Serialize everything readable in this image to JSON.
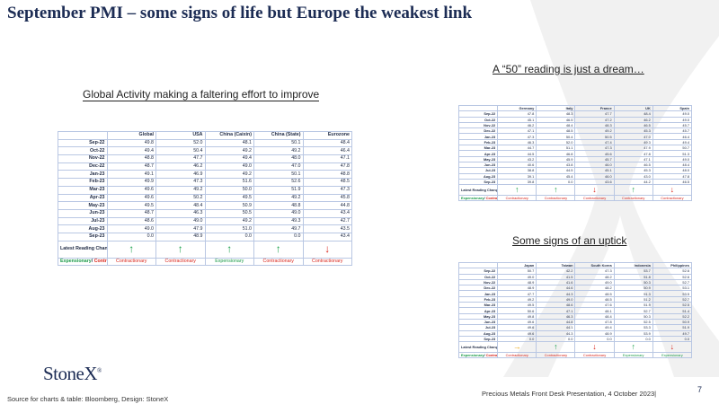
{
  "title": "September PMI – some signs of life but Europe the weakest link",
  "subtitles": {
    "global": "Global Activity making a faltering effort to improve",
    "europe": "A “50” reading is just a dream…",
    "asia": "Some signs of an uptick"
  },
  "tables": {
    "global": {
      "columns": [
        "Global",
        "USA",
        "China (Caixin)",
        "China (State)",
        "Eurozone"
      ],
      "rows": [
        {
          "label": "Sep-22",
          "values": [
            "49.8",
            "52.0",
            "48.1",
            "50.1",
            "48.4"
          ]
        },
        {
          "label": "Oct-22",
          "values": [
            "49.4",
            "50.4",
            "49.2",
            "49.2",
            "46.4"
          ]
        },
        {
          "label": "Nov-22",
          "values": [
            "48.8",
            "47.7",
            "49.4",
            "48.0",
            "47.1"
          ]
        },
        {
          "label": "Dec-22",
          "values": [
            "48.7",
            "46.2",
            "49.0",
            "47.0",
            "47.8"
          ]
        },
        {
          "label": "Jan-23",
          "values": [
            "49.1",
            "46.9",
            "49.2",
            "50.1",
            "48.8"
          ]
        },
        {
          "label": "Feb-23",
          "values": [
            "49.9",
            "47.3",
            "51.6",
            "52.6",
            "48.5"
          ]
        },
        {
          "label": "Mar-23",
          "values": [
            "49.6",
            "49.2",
            "50.0",
            "51.9",
            "47.3"
          ]
        },
        {
          "label": "Apr-23",
          "values": [
            "49.6",
            "50.2",
            "49.5",
            "49.2",
            "45.8"
          ]
        },
        {
          "label": "May-23",
          "values": [
            "49.5",
            "48.4",
            "50.9",
            "48.8",
            "44.8"
          ]
        },
        {
          "label": "Jun-23",
          "values": [
            "48.7",
            "46.3",
            "50.5",
            "49.0",
            "43.4"
          ]
        },
        {
          "label": "Jul-23",
          "values": [
            "48.6",
            "49.0",
            "49.2",
            "49.3",
            "42.7"
          ]
        },
        {
          "label": "Aug-23",
          "values": [
            "49.0",
            "47.9",
            "51.0",
            "49.7",
            "43.5"
          ]
        },
        {
          "label": "Sep-23",
          "values": [
            "0.0",
            "48.9",
            "0.0",
            "0.0",
            "43.4"
          ]
        }
      ],
      "change_label": "Latest Reading Change",
      "arrows": [
        "up",
        "up",
        "up",
        "up",
        "down"
      ],
      "status_label_exp": "Expensionary",
      "status_label_sep": "/ ",
      "status_label_con": "Contractionary",
      "status": [
        "Contractionary",
        "Contractionary",
        "Expensionary",
        "Contractionary",
        "Contractionary"
      ],
      "status_color": [
        "red",
        "red",
        "green",
        "red",
        "red"
      ]
    },
    "europe": {
      "columns": [
        "Germany",
        "Italy",
        "France",
        "UK",
        "Spain"
      ],
      "rows": [
        {
          "label": "Sep-22",
          "values": [
            "47.8",
            "48.3",
            "47.7",
            "48.4",
            "49.0"
          ]
        },
        {
          "label": "Oct-22",
          "values": [
            "45.1",
            "46.5",
            "47.2",
            "46.2",
            "49.0"
          ]
        },
        {
          "label": "Nov-22",
          "values": [
            "46.2",
            "48.4",
            "48.3",
            "46.5",
            "45.7"
          ]
        },
        {
          "label": "Dec-22",
          "values": [
            "47.1",
            "48.5",
            "49.2",
            "45.3",
            "45.7"
          ]
        },
        {
          "label": "Jan-23",
          "values": [
            "47.3",
            "50.4",
            "50.5",
            "47.0",
            "46.4"
          ]
        },
        {
          "label": "Feb-23",
          "values": [
            "46.3",
            "52.0",
            "47.4",
            "49.3",
            "49.4"
          ]
        },
        {
          "label": "Mar-23",
          "values": [
            "44.7",
            "51.1",
            "47.3",
            "47.9",
            "50.7"
          ]
        },
        {
          "label": "Apr-23",
          "values": [
            "44.5",
            "46.8",
            "45.6",
            "47.8",
            "51.3"
          ]
        },
        {
          "label": "May-23",
          "values": [
            "43.2",
            "45.9",
            "45.7",
            "47.1",
            "49.0"
          ]
        },
        {
          "label": "Jun-23",
          "values": [
            "40.6",
            "43.8",
            "46.0",
            "46.5",
            "48.4"
          ]
        },
        {
          "label": "Jul-23",
          "values": [
            "38.8",
            "44.5",
            "45.1",
            "45.3",
            "48.0"
          ]
        },
        {
          "label": "Aug-23",
          "values": [
            "39.1",
            "45.4",
            "46.0",
            "43.0",
            "47.8"
          ]
        },
        {
          "label": "Sep-23",
          "values": [
            "39.8",
            "0.0",
            "43.6",
            "44.2",
            "46.5"
          ]
        }
      ],
      "change_label": "Latest Reading Change",
      "arrows": [
        "up",
        "up",
        "down",
        "up",
        "down"
      ],
      "status_label_exp": "Expensionary",
      "status_label_sep": "/ ",
      "status_label_con": "Contractionary",
      "status": [
        "Contractionary",
        "Contractionary",
        "Contractionary",
        "Contractionary",
        "Contractionary"
      ],
      "status_color": [
        "red",
        "red",
        "red",
        "red",
        "red"
      ]
    },
    "asia": {
      "columns": [
        "Japan",
        "Taiwan",
        "South Korea",
        "Indonesia",
        "Philippines"
      ],
      "rows": [
        {
          "label": "Sep-22",
          "values": [
            "50.7",
            "42.2",
            "47.3",
            "53.7",
            "52.6"
          ]
        },
        {
          "label": "Oct-22",
          "values": [
            "49.0",
            "41.5",
            "48.2",
            "51.8",
            "52.6"
          ]
        },
        {
          "label": "Nov-22",
          "values": [
            "48.9",
            "41.6",
            "49.0",
            "50.3",
            "52.7"
          ]
        },
        {
          "label": "Dec-22",
          "values": [
            "48.9",
            "44.6",
            "48.2",
            "50.9",
            "53.1"
          ]
        },
        {
          "label": "Jan-23",
          "values": [
            "47.7",
            "44.3",
            "48.5",
            "51.3",
            "53.5"
          ]
        },
        {
          "label": "Feb-23",
          "values": [
            "49.2",
            "49.0",
            "48.5",
            "51.2",
            "52.7"
          ]
        },
        {
          "label": "Mar-23",
          "values": [
            "49.5",
            "48.6",
            "47.6",
            "51.9",
            "52.5"
          ]
        },
        {
          "label": "Apr-23",
          "values": [
            "50.6",
            "47.1",
            "48.1",
            "52.7",
            "51.4"
          ]
        },
        {
          "label": "May-23",
          "values": [
            "49.8",
            "46.3",
            "48.4",
            "50.3",
            "52.2"
          ]
        },
        {
          "label": "Jun-23",
          "values": [
            "49.6",
            "44.8",
            "47.8",
            "52.5",
            "50.9"
          ]
        },
        {
          "label": "Jul-23",
          "values": [
            "49.6",
            "44.1",
            "49.4",
            "53.3",
            "51.9"
          ]
        },
        {
          "label": "Aug-23",
          "values": [
            "49.6",
            "44.3",
            "48.9",
            "53.9",
            "49.7"
          ]
        },
        {
          "label": "Sep-23",
          "values": [
            "0.0",
            "0.0",
            "0.0",
            "0.0",
            "0.0"
          ]
        }
      ],
      "change_label": "Latest Reading Change",
      "arrows": [
        "right",
        "up",
        "down",
        "up",
        "down"
      ],
      "status_label_exp": "Expensionary",
      "status_label_sep": "/ ",
      "status_label_con": "Contractionary",
      "status": [
        "Contractionary",
        "Contractionary",
        "Contractionary",
        "Expensionary",
        "Expensionary"
      ],
      "status_color": [
        "red",
        "red",
        "red",
        "green",
        "green"
      ]
    }
  },
  "logo": {
    "text": "StoneX",
    "mark": "®"
  },
  "source": "Source for charts & table: Bloomberg, Design: StoneX",
  "footer": "Precious Metals Front Desk Presentation, 4 October 2023|",
  "page_number": "7",
  "colors": {
    "title": "#1c2c54",
    "border": "#b9c7e3",
    "red": "#d9261c",
    "green": "#1a9a48",
    "amber": "#e8a200"
  }
}
